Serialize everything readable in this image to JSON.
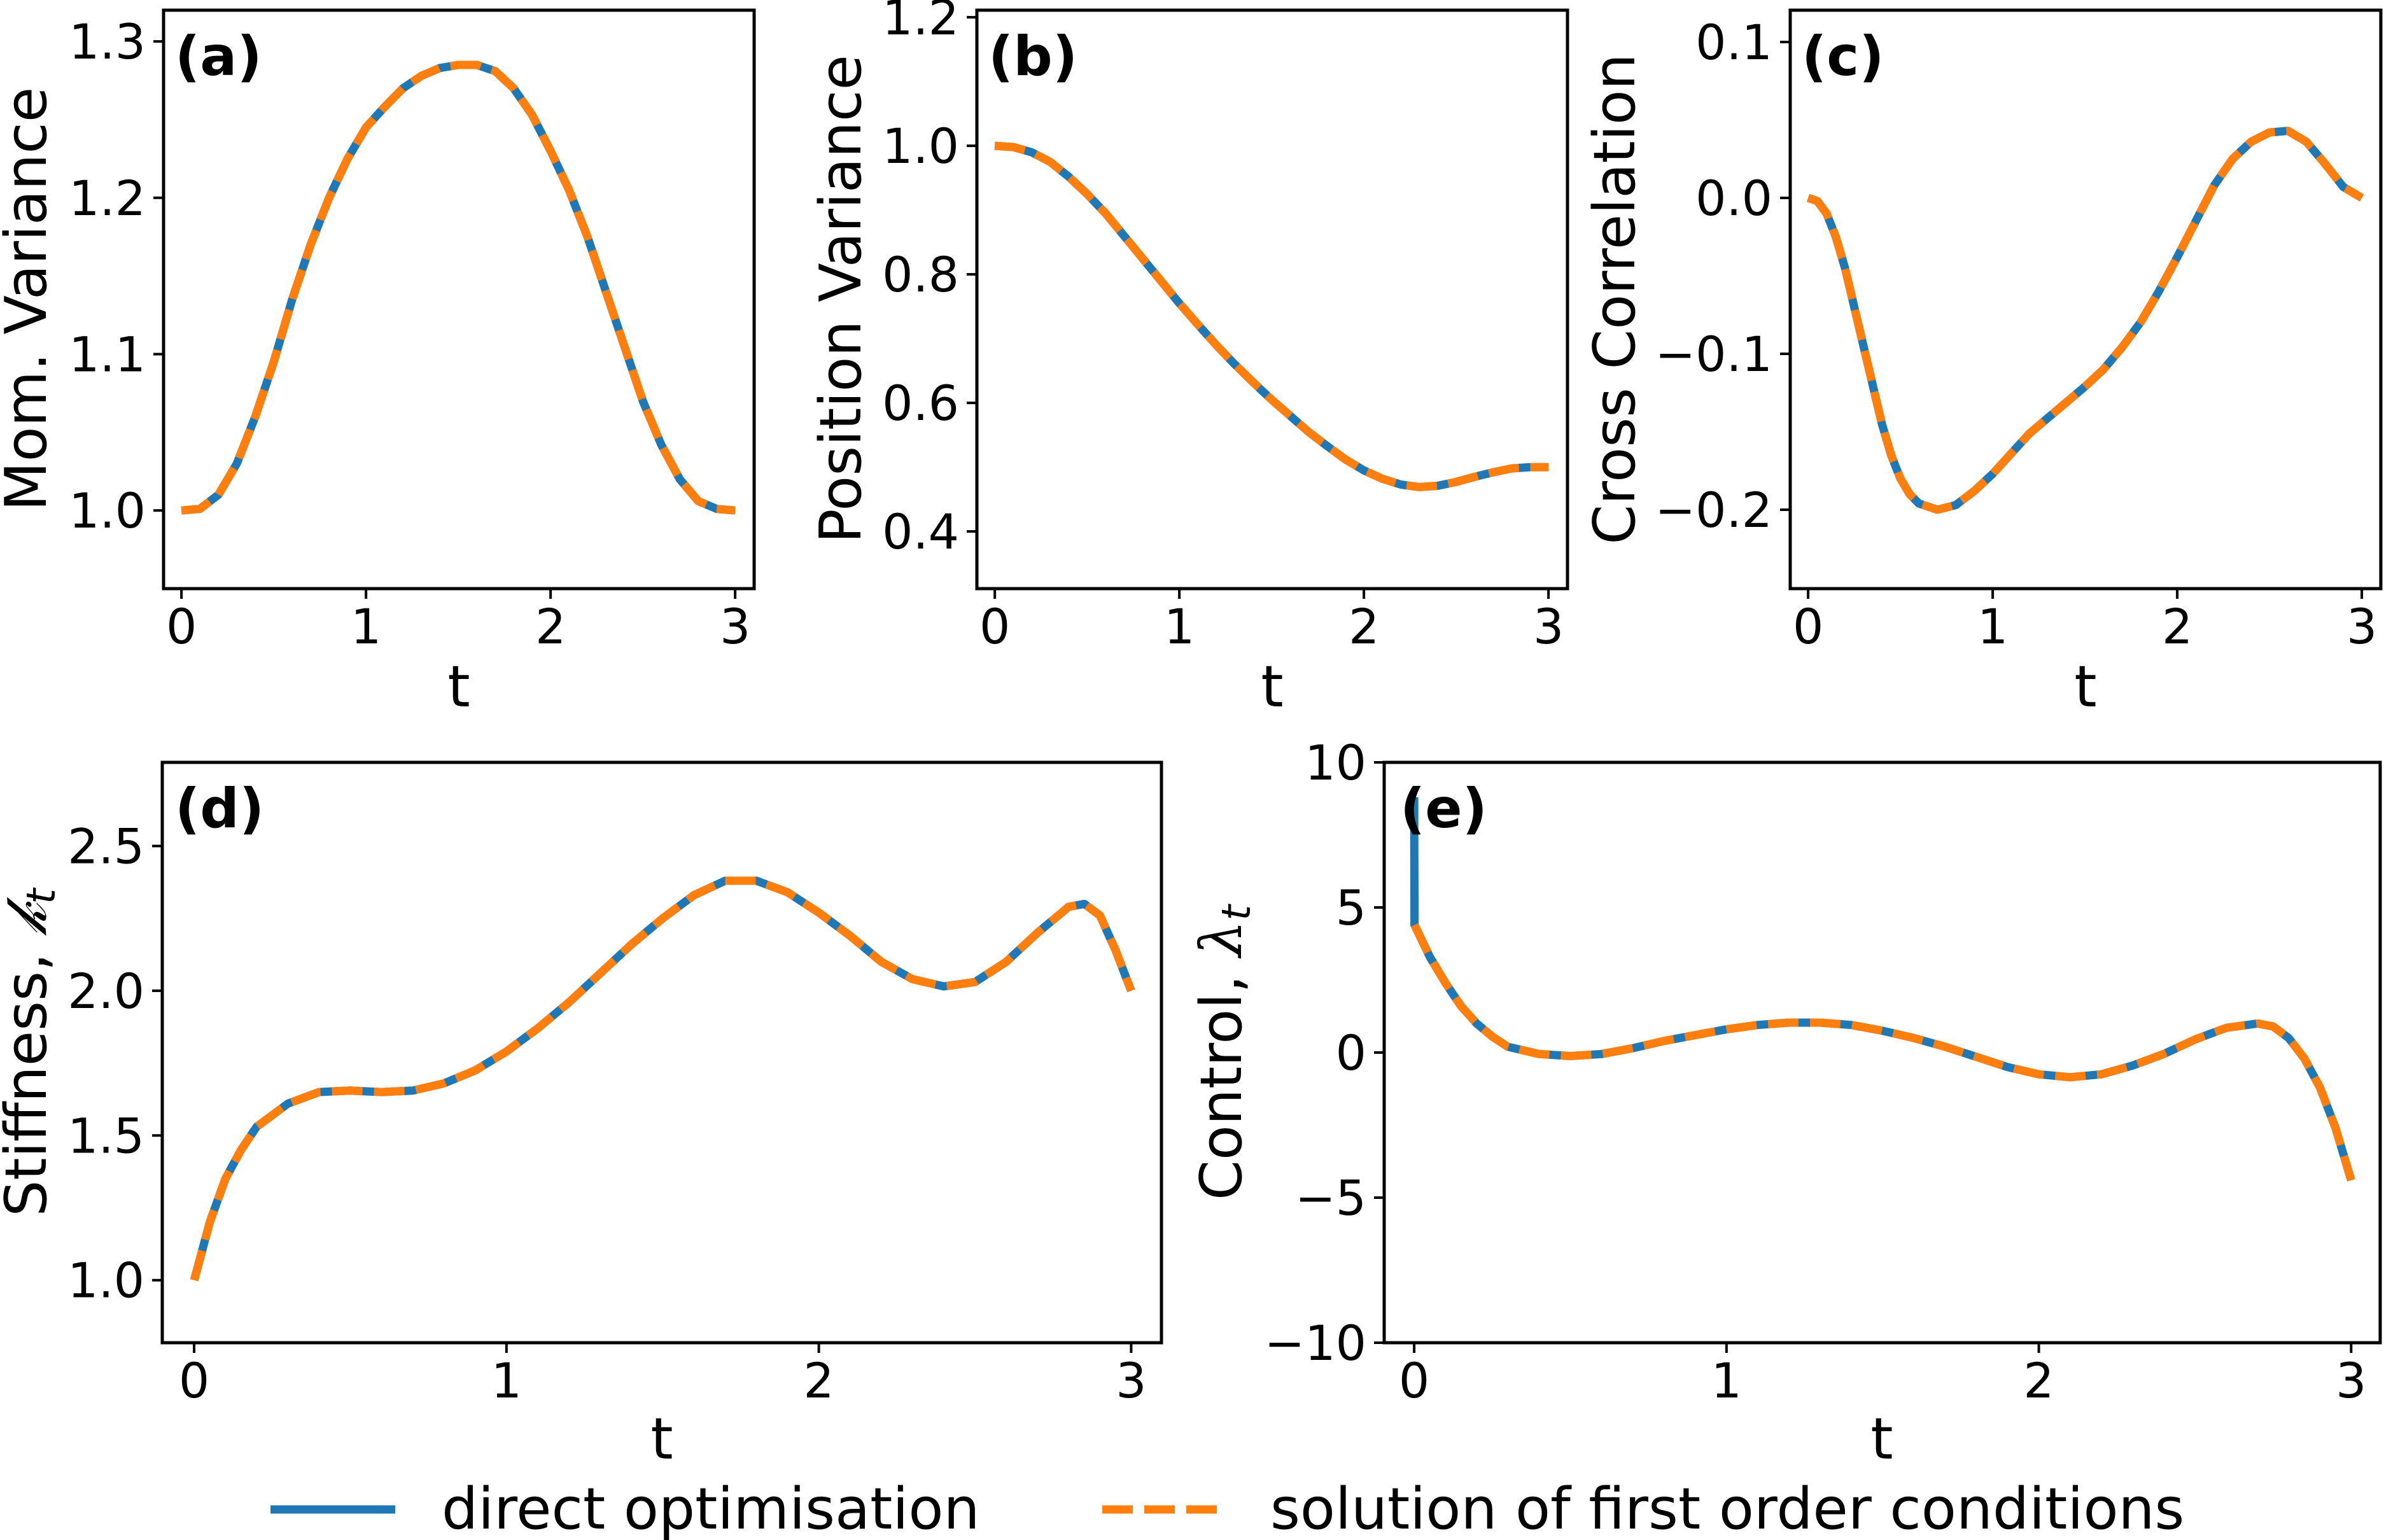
{
  "colors": {
    "direct": "#1f77b4",
    "foc": "#ff7f0e",
    "axes": "#000000"
  },
  "legend": {
    "placement": "bottom-center",
    "entries": [
      {
        "label": "direct optimisation",
        "style": "solid",
        "color": "#1f77b4"
      },
      {
        "label": "solution of first order conditions",
        "style": "dashed",
        "color": "#ff7f0e"
      }
    ]
  },
  "chart_data": [
    {
      "type": "line",
      "panel": "(a)",
      "xlabel": "t",
      "ylabel": "Mom. Variance",
      "xlim": [
        -0.097,
        3.103
      ],
      "ylim": [
        0.95,
        1.32
      ],
      "xticks": [
        0,
        1,
        2,
        3
      ],
      "xtick_labels": [
        "0",
        "1",
        "2",
        "3"
      ],
      "yticks": [
        1.0,
        1.1,
        1.2,
        1.3
      ],
      "ytick_labels": [
        "1.0",
        "1.1",
        "1.2",
        "1.3"
      ],
      "grid": false,
      "x": [
        0,
        0.1,
        0.2,
        0.3,
        0.4,
        0.5,
        0.6,
        0.7,
        0.8,
        0.9,
        1.0,
        1.1,
        1.2,
        1.3,
        1.4,
        1.5,
        1.6,
        1.7,
        1.8,
        1.9,
        2.0,
        2.1,
        2.2,
        2.3,
        2.4,
        2.5,
        2.6,
        2.7,
        2.8,
        2.9,
        3.0
      ],
      "series": [
        {
          "name": "direct optimisation",
          "values": [
            1.0,
            1.001,
            1.01,
            1.03,
            1.06,
            1.095,
            1.135,
            1.17,
            1.2,
            1.225,
            1.245,
            1.258,
            1.27,
            1.278,
            1.283,
            1.285,
            1.285,
            1.281,
            1.27,
            1.253,
            1.23,
            1.205,
            1.175,
            1.14,
            1.105,
            1.07,
            1.042,
            1.02,
            1.006,
            1.001,
            1.0
          ]
        },
        {
          "name": "solution of first order conditions",
          "values": [
            1.0,
            1.001,
            1.01,
            1.03,
            1.06,
            1.095,
            1.135,
            1.17,
            1.2,
            1.225,
            1.245,
            1.258,
            1.27,
            1.278,
            1.283,
            1.285,
            1.285,
            1.281,
            1.27,
            1.253,
            1.23,
            1.205,
            1.175,
            1.14,
            1.105,
            1.07,
            1.042,
            1.02,
            1.006,
            1.001,
            1.0
          ]
        }
      ]
    },
    {
      "type": "line",
      "panel": "(b)",
      "xlabel": "t",
      "ylabel": "Position Variance",
      "xlim": [
        -0.097,
        3.103
      ],
      "ylim": [
        0.311,
        1.211
      ],
      "xticks": [
        0,
        1,
        2,
        3
      ],
      "xtick_labels": [
        "0",
        "1",
        "2",
        "3"
      ],
      "yticks": [
        0.4,
        0.6,
        0.8,
        1.0,
        1.2
      ],
      "ytick_labels": [
        "0.4",
        "0.6",
        "0.8",
        "1.0",
        "1.2"
      ],
      "grid": false,
      "x": [
        0,
        0.1,
        0.2,
        0.3,
        0.4,
        0.5,
        0.6,
        0.7,
        0.8,
        0.9,
        1.0,
        1.1,
        1.2,
        1.3,
        1.4,
        1.5,
        1.6,
        1.7,
        1.8,
        1.9,
        2.0,
        2.1,
        2.2,
        2.3,
        2.4,
        2.5,
        2.6,
        2.7,
        2.8,
        2.9,
        3.0
      ],
      "series": [
        {
          "name": "direct optimisation",
          "values": [
            1.0,
            0.998,
            0.99,
            0.975,
            0.952,
            0.925,
            0.895,
            0.86,
            0.825,
            0.79,
            0.755,
            0.722,
            0.69,
            0.66,
            0.632,
            0.605,
            0.58,
            0.555,
            0.533,
            0.512,
            0.495,
            0.482,
            0.473,
            0.469,
            0.471,
            0.477,
            0.485,
            0.492,
            0.498,
            0.5,
            0.5
          ]
        },
        {
          "name": "solution of first order conditions",
          "values": [
            1.0,
            0.998,
            0.99,
            0.975,
            0.952,
            0.925,
            0.895,
            0.86,
            0.825,
            0.79,
            0.755,
            0.722,
            0.69,
            0.66,
            0.632,
            0.605,
            0.58,
            0.555,
            0.533,
            0.512,
            0.495,
            0.482,
            0.473,
            0.469,
            0.471,
            0.477,
            0.485,
            0.492,
            0.498,
            0.5,
            0.5
          ]
        }
      ]
    },
    {
      "type": "line",
      "panel": "(c)",
      "xlabel": "t",
      "ylabel": "Cross Correlation",
      "xlim": [
        -0.097,
        3.103
      ],
      "ylim": [
        -0.2506,
        0.1204
      ],
      "xticks": [
        0,
        1,
        2,
        3
      ],
      "xtick_labels": [
        "0",
        "1",
        "2",
        "3"
      ],
      "yticks": [
        -0.2,
        -0.1,
        0.0,
        0.1
      ],
      "ytick_labels": [
        "−0.2",
        "−0.1",
        "0.0",
        "0.1"
      ],
      "grid": false,
      "x": [
        0,
        0.05,
        0.1,
        0.15,
        0.2,
        0.25,
        0.3,
        0.35,
        0.4,
        0.45,
        0.5,
        0.55,
        0.6,
        0.7,
        0.8,
        0.9,
        1.0,
        1.1,
        1.2,
        1.3,
        1.4,
        1.5,
        1.6,
        1.7,
        1.8,
        1.9,
        2.0,
        2.1,
        2.2,
        2.3,
        2.4,
        2.5,
        2.6,
        2.7,
        2.8,
        2.9,
        3.0
      ],
      "series": [
        {
          "name": "direct optimisation",
          "values": [
            0.0,
            -0.002,
            -0.01,
            -0.025,
            -0.045,
            -0.07,
            -0.095,
            -0.12,
            -0.145,
            -0.165,
            -0.18,
            -0.19,
            -0.196,
            -0.2,
            -0.197,
            -0.188,
            -0.177,
            -0.164,
            -0.151,
            -0.141,
            -0.131,
            -0.121,
            -0.11,
            -0.096,
            -0.08,
            -0.06,
            -0.038,
            -0.015,
            0.008,
            0.025,
            0.036,
            0.042,
            0.043,
            0.036,
            0.022,
            0.007,
            0.0
          ]
        },
        {
          "name": "solution of first order conditions",
          "values": [
            0.0,
            -0.002,
            -0.01,
            -0.025,
            -0.045,
            -0.07,
            -0.095,
            -0.12,
            -0.145,
            -0.165,
            -0.18,
            -0.19,
            -0.196,
            -0.2,
            -0.197,
            -0.188,
            -0.177,
            -0.164,
            -0.151,
            -0.141,
            -0.131,
            -0.121,
            -0.11,
            -0.096,
            -0.08,
            -0.06,
            -0.038,
            -0.015,
            0.008,
            0.025,
            0.036,
            0.042,
            0.043,
            0.036,
            0.022,
            0.007,
            0.0
          ]
        }
      ]
    },
    {
      "type": "line",
      "panel": "(d)",
      "xlabel": "t",
      "ylabel": "Stiffness, ",
      "ylabel_symbol": "𝓀",
      "ylabel_subscript": "t",
      "xlim": [
        -0.102,
        3.097
      ],
      "ylim": [
        0.784,
        2.789
      ],
      "xticks": [
        0,
        1,
        2,
        3
      ],
      "xtick_labels": [
        "0",
        "1",
        "2",
        "3"
      ],
      "yticks": [
        1.0,
        1.5,
        2.0,
        2.5
      ],
      "ytick_labels": [
        "1.0",
        "1.5",
        "2.0",
        "2.5"
      ],
      "grid": false,
      "x": [
        0,
        0.05,
        0.1,
        0.15,
        0.2,
        0.3,
        0.4,
        0.5,
        0.6,
        0.7,
        0.8,
        0.9,
        1.0,
        1.1,
        1.2,
        1.3,
        1.4,
        1.5,
        1.6,
        1.7,
        1.8,
        1.9,
        2.0,
        2.1,
        2.2,
        2.3,
        2.4,
        2.5,
        2.6,
        2.7,
        2.8,
        2.85,
        2.9,
        2.95,
        3.0
      ],
      "series": [
        {
          "name": "direct optimisation",
          "values": [
            1.0,
            1.2,
            1.35,
            1.45,
            1.53,
            1.61,
            1.65,
            1.655,
            1.65,
            1.655,
            1.68,
            1.725,
            1.79,
            1.87,
            1.96,
            2.06,
            2.16,
            2.25,
            2.33,
            2.38,
            2.38,
            2.34,
            2.27,
            2.19,
            2.1,
            2.04,
            2.015,
            2.03,
            2.1,
            2.2,
            2.29,
            2.3,
            2.26,
            2.14,
            2.0
          ]
        },
        {
          "name": "solution of first order conditions",
          "values": [
            1.0,
            1.2,
            1.35,
            1.45,
            1.53,
            1.61,
            1.65,
            1.655,
            1.65,
            1.655,
            1.68,
            1.725,
            1.79,
            1.87,
            1.96,
            2.06,
            2.16,
            2.25,
            2.33,
            2.38,
            2.38,
            2.34,
            2.27,
            2.19,
            2.1,
            2.04,
            2.015,
            2.03,
            2.1,
            2.2,
            2.29,
            2.3,
            2.26,
            2.14,
            2.0
          ]
        }
      ]
    },
    {
      "type": "line",
      "panel": "(e)",
      "xlabel": "t",
      "ylabel": "Control, ",
      "ylabel_symbol": "λ",
      "ylabel_subscript": "t",
      "xlim": [
        -0.096,
        3.093
      ],
      "ylim": [
        -10,
        10
      ],
      "xticks": [
        0,
        1,
        2,
        3
      ],
      "xtick_labels": [
        "0",
        "1",
        "2",
        "3"
      ],
      "yticks": [
        -10,
        -5,
        0,
        5,
        10
      ],
      "ytick_labels": [
        "−10",
        "−5",
        "0",
        "5",
        "10"
      ],
      "grid": false,
      "series": [
        {
          "name": "direct optimisation",
          "x": [
            0,
            0.001,
            0.05,
            0.1,
            0.15,
            0.2,
            0.25,
            0.3,
            0.4,
            0.5,
            0.6,
            0.7,
            0.8,
            0.9,
            1.0,
            1.1,
            1.2,
            1.3,
            1.4,
            1.5,
            1.6,
            1.7,
            1.8,
            1.9,
            2.0,
            2.1,
            2.2,
            2.3,
            2.4,
            2.5,
            2.6,
            2.7,
            2.75,
            2.8,
            2.85,
            2.9,
            2.95,
            3.0
          ],
          "values": [
            8.8,
            4.4,
            3.3,
            2.4,
            1.6,
            1.0,
            0.55,
            0.2,
            -0.05,
            -0.12,
            -0.05,
            0.15,
            0.4,
            0.6,
            0.8,
            0.95,
            1.03,
            1.03,
            0.95,
            0.75,
            0.5,
            0.2,
            -0.15,
            -0.5,
            -0.75,
            -0.85,
            -0.75,
            -0.45,
            -0.05,
            0.45,
            0.85,
            1.0,
            0.9,
            0.5,
            -0.2,
            -1.2,
            -2.6,
            -4.4
          ]
        },
        {
          "name": "solution of first order conditions",
          "x": [
            0.001,
            0.05,
            0.1,
            0.15,
            0.2,
            0.25,
            0.3,
            0.4,
            0.5,
            0.6,
            0.7,
            0.8,
            0.9,
            1.0,
            1.1,
            1.2,
            1.3,
            1.4,
            1.5,
            1.6,
            1.7,
            1.8,
            1.9,
            2.0,
            2.1,
            2.2,
            2.3,
            2.4,
            2.5,
            2.6,
            2.7,
            2.75,
            2.8,
            2.85,
            2.9,
            2.95,
            3.0
          ],
          "values": [
            4.4,
            3.3,
            2.4,
            1.6,
            1.0,
            0.55,
            0.2,
            -0.05,
            -0.12,
            -0.05,
            0.15,
            0.4,
            0.6,
            0.8,
            0.95,
            1.03,
            1.03,
            0.95,
            0.75,
            0.5,
            0.2,
            -0.15,
            -0.5,
            -0.75,
            -0.85,
            -0.75,
            -0.45,
            -0.05,
            0.45,
            0.85,
            1.0,
            0.9,
            0.5,
            -0.2,
            -1.2,
            -2.6,
            -4.4
          ]
        }
      ]
    }
  ]
}
